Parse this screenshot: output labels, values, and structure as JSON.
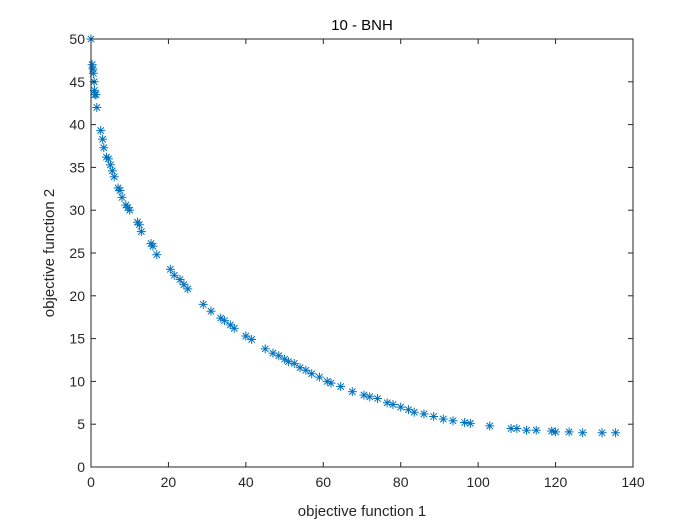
{
  "chart_data": {
    "type": "scatter",
    "title": "10 - BNH",
    "xlabel": "objective function 1",
    "ylabel": "objective function 2",
    "xlim": [
      0,
      140
    ],
    "ylim": [
      0,
      50
    ],
    "xticks": [
      0,
      20,
      40,
      60,
      80,
      100,
      120,
      140
    ],
    "yticks": [
      0,
      5,
      10,
      15,
      20,
      25,
      30,
      35,
      40,
      45,
      50
    ],
    "grid": false,
    "legend": "none",
    "marker": "asterisk",
    "color": "#0072BD",
    "series": [
      {
        "points": [
          [
            0.0,
            50.0
          ],
          [
            0.3,
            47.0
          ],
          [
            0.5,
            46.5
          ],
          [
            0.6,
            46.0
          ],
          [
            0.8,
            45.0
          ],
          [
            0.9,
            44.0
          ],
          [
            1.0,
            43.5
          ],
          [
            1.3,
            43.5
          ],
          [
            1.5,
            42.0
          ],
          [
            2.5,
            39.3
          ],
          [
            3.0,
            38.3
          ],
          [
            3.3,
            37.3
          ],
          [
            4.0,
            36.2
          ],
          [
            4.5,
            36.0
          ],
          [
            5.0,
            35.3
          ],
          [
            5.5,
            34.6
          ],
          [
            6.0,
            33.9
          ],
          [
            7.0,
            32.6
          ],
          [
            7.5,
            32.3
          ],
          [
            8.0,
            31.5
          ],
          [
            9.0,
            30.6
          ],
          [
            9.5,
            30.3
          ],
          [
            10.0,
            30.0
          ],
          [
            12.0,
            28.6
          ],
          [
            12.5,
            28.3
          ],
          [
            13.0,
            27.5
          ],
          [
            15.5,
            26.1
          ],
          [
            16.0,
            25.8
          ],
          [
            17.0,
            24.8
          ],
          [
            20.5,
            23.1
          ],
          [
            21.5,
            22.4
          ],
          [
            23.0,
            21.9
          ],
          [
            24.0,
            21.3
          ],
          [
            25.0,
            20.8
          ],
          [
            29.0,
            19.0
          ],
          [
            31.0,
            18.2
          ],
          [
            33.5,
            17.4
          ],
          [
            34.5,
            17.1
          ],
          [
            36.0,
            16.6
          ],
          [
            37.0,
            16.2
          ],
          [
            40.0,
            15.3
          ],
          [
            41.5,
            14.9
          ],
          [
            45.0,
            13.8
          ],
          [
            47.0,
            13.3
          ],
          [
            48.5,
            13.0
          ],
          [
            50.0,
            12.6
          ],
          [
            51.0,
            12.3
          ],
          [
            52.5,
            12.1
          ],
          [
            54.0,
            11.6
          ],
          [
            55.5,
            11.3
          ],
          [
            57.0,
            10.9
          ],
          [
            59.0,
            10.5
          ],
          [
            61.0,
            10.0
          ],
          [
            62.0,
            9.8
          ],
          [
            64.5,
            9.4
          ],
          [
            67.5,
            8.8
          ],
          [
            70.5,
            8.4
          ],
          [
            72.0,
            8.2
          ],
          [
            74.0,
            8.0
          ],
          [
            76.5,
            7.5
          ],
          [
            78.0,
            7.3
          ],
          [
            80.0,
            7.0
          ],
          [
            82.0,
            6.7
          ],
          [
            83.5,
            6.4
          ],
          [
            86.0,
            6.2
          ],
          [
            88.5,
            5.9
          ],
          [
            91.0,
            5.6
          ],
          [
            93.5,
            5.4
          ],
          [
            96.5,
            5.2
          ],
          [
            98.0,
            5.1
          ],
          [
            103.0,
            4.8
          ],
          [
            108.5,
            4.5
          ],
          [
            110.0,
            4.5
          ],
          [
            112.5,
            4.3
          ],
          [
            115.0,
            4.3
          ],
          [
            119.0,
            4.2
          ],
          [
            120.0,
            4.1
          ],
          [
            123.5,
            4.1
          ],
          [
            127.0,
            4.0
          ],
          [
            132.0,
            4.0
          ],
          [
            135.5,
            4.0
          ]
        ]
      }
    ]
  }
}
